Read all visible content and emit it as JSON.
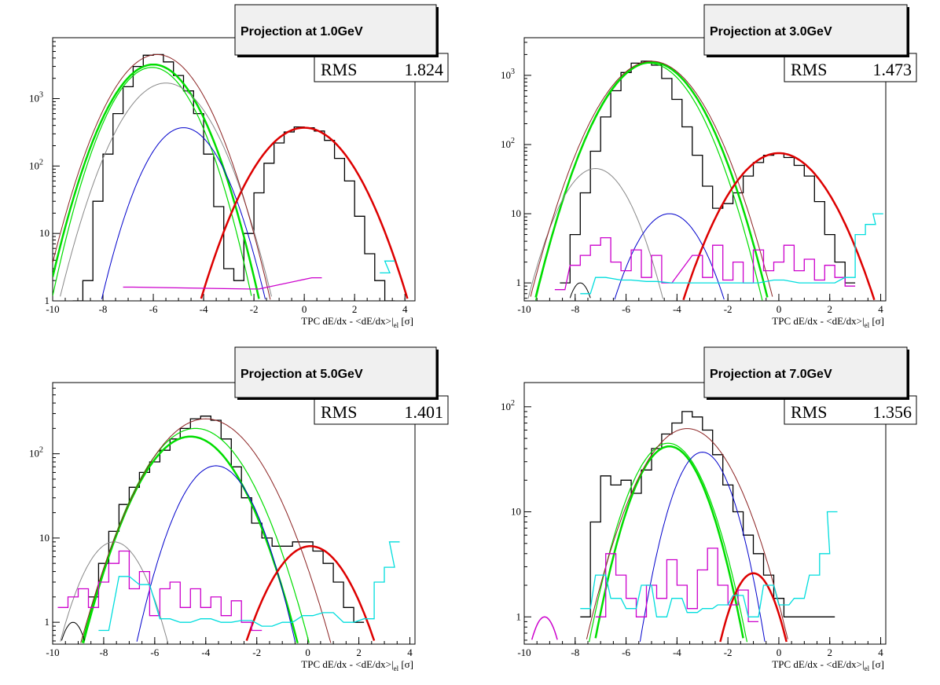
{
  "chart_data": [
    {
      "type": "line",
      "title": "Projection at 1.0GeV",
      "stat_label": "RMS",
      "stat_value": "1.824",
      "xlabel": "TPC dE/dx - <dE/dx>|el [σ]",
      "xlim": [
        -10,
        4.4
      ],
      "ylim_log": [
        1,
        8000
      ],
      "log_y": true,
      "x_ticks": [
        "-10",
        "-8",
        "-6",
        "-4",
        "-2",
        "0",
        "2",
        "4"
      ],
      "y_ticks": [
        {
          "base": "10",
          "exp": "3",
          "value": 1000
        },
        {
          "base": "10",
          "exp": "2",
          "value": 100
        },
        {
          "base": "10",
          "exp": "",
          "value": 10
        },
        {
          "base": "1",
          "exp": "",
          "value": 1
        }
      ],
      "series": [
        {
          "kind": "hist",
          "color": "#000000",
          "x": [
            -9.0,
            -8.6,
            -8.2,
            -7.8,
            -7.4,
            -7.0,
            -6.6,
            -6.2,
            -5.8,
            -5.4,
            -5.0,
            -4.6,
            -4.2,
            -3.8,
            -3.4,
            -3.0,
            -2.6,
            -2.2,
            -1.8,
            -1.4,
            -1.0,
            -0.6,
            -0.2,
            0.2,
            0.6,
            1.0,
            1.4,
            1.8,
            2.2,
            2.6,
            3.0,
            3.4
          ],
          "y": [
            1,
            2,
            30,
            150,
            600,
            1500,
            3000,
            4400,
            4500,
            3500,
            2200,
            1300,
            600,
            150,
            25,
            3,
            2,
            10,
            40,
            110,
            220,
            320,
            380,
            370,
            330,
            240,
            130,
            60,
            18,
            5,
            2,
            1
          ]
        },
        {
          "kind": "gauss",
          "color": "#00dd00",
          "width": 2.5,
          "amp": 3200,
          "mu": -6.0,
          "sigma": 1.05
        },
        {
          "kind": "gauss",
          "color": "#00dd00",
          "width": 1.2,
          "amp": 2900,
          "mu": -6.05,
          "sigma": 1.0
        },
        {
          "kind": "gauss",
          "color": "#888888",
          "width": 1,
          "amp": 1700,
          "mu": -5.5,
          "sigma": 1.1
        },
        {
          "kind": "gauss",
          "color": "#0000cc",
          "width": 1,
          "amp": 370,
          "mu": -4.8,
          "sigma": 0.95
        },
        {
          "kind": "gauss",
          "color": "#dd0000",
          "width": 2.5,
          "amp": 370,
          "mu": 0.0,
          "sigma": 1.2
        },
        {
          "kind": "gauss",
          "color": "#8b2222",
          "width": 1,
          "amp": 4500,
          "mu": -5.85,
          "sigma": 1.1
        },
        {
          "kind": "hist",
          "color": "#cc00cc",
          "x": [
            -7.0,
            -2.0,
            0.5
          ],
          "y": [
            1.6,
            1.5,
            2.2
          ]
        },
        {
          "kind": "hist",
          "color": "#00dddd",
          "x": [
            3.2,
            3.4
          ],
          "y": [
            2.6,
            3.9
          ]
        }
      ]
    },
    {
      "type": "line",
      "title": "Projection at 3.0GeV",
      "stat_label": "RMS",
      "stat_value": "1.473",
      "xlabel": "TPC dE/dx - <dE/dx>|el [σ]",
      "xlim": [
        -10,
        4.2
      ],
      "ylim_log": [
        0.55,
        3500
      ],
      "log_y": true,
      "x_ticks": [
        "-10",
        "-8",
        "-6",
        "-4",
        "-2",
        "0",
        "2",
        "4"
      ],
      "y_ticks": [
        {
          "base": "10",
          "exp": "3",
          "value": 1000
        },
        {
          "base": "10",
          "exp": "2",
          "value": 100
        },
        {
          "base": "10",
          "exp": "",
          "value": 10
        },
        {
          "base": "1",
          "exp": "",
          "value": 1
        }
      ],
      "series": [
        {
          "kind": "hist",
          "color": "#000000",
          "x": [
            -8.4,
            -8.0,
            -7.6,
            -7.2,
            -6.8,
            -6.4,
            -6.0,
            -5.6,
            -5.2,
            -4.8,
            -4.4,
            -4.0,
            -3.6,
            -3.2,
            -2.8,
            -2.4,
            -2.0,
            -1.6,
            -1.2,
            -0.8,
            -0.4,
            0.0,
            0.4,
            0.8,
            1.2,
            1.6,
            2.0,
            2.4,
            2.8
          ],
          "y": [
            1,
            5,
            20,
            80,
            250,
            600,
            1100,
            1500,
            1600,
            1400,
            900,
            450,
            180,
            70,
            25,
            12,
            14,
            20,
            35,
            55,
            70,
            75,
            65,
            50,
            35,
            15,
            5,
            2,
            1
          ]
        },
        {
          "kind": "gauss",
          "color": "#00dd00",
          "width": 2.5,
          "amp": 1550,
          "mu": -5.0,
          "sigma": 1.15
        },
        {
          "kind": "gauss",
          "color": "#00dd00",
          "width": 1.2,
          "amp": 1500,
          "mu": -5.1,
          "sigma": 1.12
        },
        {
          "kind": "gauss",
          "color": "#888888",
          "width": 1,
          "amp": 45,
          "mu": -7.2,
          "sigma": 0.9
        },
        {
          "kind": "gauss",
          "color": "#0000cc",
          "width": 1,
          "amp": 10,
          "mu": -4.3,
          "sigma": 0.9
        },
        {
          "kind": "gauss",
          "color": "#000000",
          "width": 1,
          "amp": 1,
          "mu": -7.8,
          "sigma": 0.4
        },
        {
          "kind": "gauss",
          "color": "#dd0000",
          "width": 2.5,
          "amp": 75,
          "mu": 0.0,
          "sigma": 1.2
        },
        {
          "kind": "gauss",
          "color": "#8b2222",
          "width": 1,
          "amp": 1600,
          "mu": -5.0,
          "sigma": 1.2
        },
        {
          "kind": "hist",
          "color": "#cc00cc",
          "x": [
            -8.6,
            -8.0,
            -7.6,
            -7.2,
            -6.8,
            -6.4,
            -6.0,
            -5.6,
            -5.2,
            -4.8,
            -4.4,
            -3.2,
            -2.8,
            -2.4,
            -2.0,
            -1.6,
            -1.2,
            -0.8,
            -0.4,
            0.0,
            0.4,
            0.8,
            1.2,
            1.6,
            2.0,
            2.4,
            2.8
          ],
          "y": [
            0.8,
            1.8,
            2.5,
            3.5,
            4.5,
            2.0,
            1.5,
            3.0,
            1.2,
            2.5,
            1.0,
            2.5,
            1.2,
            3.5,
            1.1,
            2.0,
            1.0,
            3.0,
            1.5,
            2.0,
            3.5,
            1.5,
            2.2,
            1.1,
            1.8,
            1.2,
            0.9
          ]
        },
        {
          "kind": "hist",
          "color": "#00dddd",
          "x": [
            -7.6,
            -7.0,
            -6.0,
            -5.0,
            -4.0,
            -3.0,
            -2.0,
            -1.0,
            0.0,
            1.0,
            2.0,
            2.8,
            3.2,
            3.6,
            3.9
          ],
          "y": [
            0.7,
            1.2,
            1.1,
            1.05,
            1.0,
            1.0,
            1.0,
            1.0,
            1.1,
            1.0,
            1.0,
            1.2,
            5.0,
            7.0,
            10.0
          ]
        }
      ]
    },
    {
      "type": "line",
      "title": "Projection at 5.0GeV",
      "stat_label": "RMS",
      "stat_value": "1.401",
      "xlabel": "TPC dE/dx - <dE/dx>|el [σ]",
      "xlim": [
        -10,
        4.2
      ],
      "ylim_log": [
        0.55,
        700
      ],
      "log_y": true,
      "x_ticks": [
        "-10",
        "-8",
        "-6",
        "-4",
        "-2",
        "0",
        "2",
        "4"
      ],
      "y_ticks": [
        {
          "base": "10",
          "exp": "2",
          "value": 100
        },
        {
          "base": "10",
          "exp": "",
          "value": 10
        },
        {
          "base": "1",
          "exp": "",
          "value": 1
        }
      ],
      "series": [
        {
          "kind": "hist",
          "color": "#000000",
          "x": [
            -8.4,
            -8.0,
            -7.6,
            -7.2,
            -6.8,
            -6.4,
            -6.0,
            -5.6,
            -5.2,
            -4.8,
            -4.4,
            -4.0,
            -3.6,
            -3.2,
            -2.8,
            -2.4,
            -2.0,
            -1.6,
            -1.2,
            -0.8,
            -0.4,
            0.0,
            0.4,
            0.8,
            1.2,
            1.6,
            2.0
          ],
          "y": [
            2,
            5,
            12,
            25,
            40,
            60,
            80,
            110,
            150,
            200,
            260,
            280,
            250,
            150,
            70,
            30,
            15,
            10,
            8,
            8,
            9,
            9,
            7,
            5,
            3,
            1.5,
            1
          ]
        },
        {
          "kind": "gauss",
          "color": "#00dd00",
          "width": 2.5,
          "amp": 160,
          "mu": -4.6,
          "sigma": 1.25
        },
        {
          "kind": "gauss",
          "color": "#00dd00",
          "width": 1.2,
          "amp": 200,
          "mu": -4.4,
          "sigma": 1.3
        },
        {
          "kind": "gauss",
          "color": "#888888",
          "width": 1,
          "amp": 9,
          "mu": -7.6,
          "sigma": 0.9
        },
        {
          "kind": "gauss",
          "color": "#0000cc",
          "width": 1,
          "amp": 72,
          "mu": -3.6,
          "sigma": 1.0
        },
        {
          "kind": "gauss",
          "color": "#000000",
          "width": 1,
          "amp": 1,
          "mu": -9.2,
          "sigma": 0.45
        },
        {
          "kind": "gauss",
          "color": "#dd0000",
          "width": 2.5,
          "amp": 8,
          "mu": 0.1,
          "sigma": 1.1
        },
        {
          "kind": "gauss",
          "color": "#8b2222",
          "width": 1,
          "amp": 260,
          "mu": -4.0,
          "sigma": 1.4
        },
        {
          "kind": "hist",
          "color": "#cc00cc",
          "x": [
            -9.6,
            -9.2,
            -8.8,
            -8.4,
            -8.0,
            -7.6,
            -7.2,
            -6.8,
            -6.4,
            -6.0,
            -5.6,
            -5.2,
            -4.8,
            -4.4,
            -4.0,
            -3.6,
            -3.2,
            -2.8,
            -2.4,
            -2.0
          ],
          "y": [
            1.5,
            2.0,
            2.5,
            1.5,
            3.0,
            5.0,
            7.0,
            2.5,
            4.0,
            1.2,
            2.5,
            3.0,
            1.5,
            2.5,
            1.5,
            2.0,
            1.2,
            1.8,
            1.0,
            0.8
          ]
        },
        {
          "kind": "hist",
          "color": "#00dddd",
          "x": [
            -8.0,
            -7.2,
            -6.4,
            -5.6,
            -4.8,
            -4.0,
            -3.2,
            -2.4,
            -1.6,
            -0.8,
            0.0,
            0.8,
            1.6,
            2.4,
            2.8,
            3.2,
            3.4
          ],
          "y": [
            0.8,
            3.5,
            2.8,
            1.1,
            1.0,
            1.1,
            1.0,
            1.05,
            0.9,
            1.0,
            1.2,
            1.3,
            1.0,
            1.1,
            3.0,
            4.5,
            9.0
          ]
        }
      ]
    },
    {
      "type": "line",
      "title": "Projection at 7.0GeV",
      "stat_label": "RMS",
      "stat_value": "1.356",
      "xlabel": "TPC dE/dx - <dE/dx>|el [σ]",
      "xlim": [
        -10,
        4.2
      ],
      "ylim_log": [
        0.55,
        170
      ],
      "log_y": true,
      "x_ticks": [
        "-10",
        "-8",
        "-6",
        "-4",
        "-2",
        "0",
        "2",
        "4"
      ],
      "y_ticks": [
        {
          "base": "10",
          "exp": "2",
          "value": 100
        },
        {
          "base": "10",
          "exp": "",
          "value": 10
        },
        {
          "base": "1",
          "exp": "",
          "value": 1
        }
      ],
      "series": [
        {
          "kind": "hist",
          "color": "#000000",
          "x": [
            -7.6,
            -7.2,
            -6.8,
            -6.4,
            -6.0,
            -5.6,
            -5.2,
            -4.8,
            -4.4,
            -4.0,
            -3.6,
            -3.2,
            -2.8,
            -2.4,
            -2.0,
            -1.6,
            -1.2,
            -0.8,
            -0.4,
            0.0,
            0.4,
            0.8,
            1.2,
            1.6,
            2.0
          ],
          "y": [
            1,
            8,
            22,
            18,
            20,
            15,
            25,
            40,
            55,
            70,
            90,
            80,
            60,
            35,
            18,
            10,
            6,
            4,
            2.5,
            1.5,
            1,
            1,
            1,
            1,
            1
          ]
        },
        {
          "kind": "gauss",
          "color": "#00dd00",
          "width": 2.5,
          "amp": 42,
          "mu": -4.3,
          "sigma": 1.0
        },
        {
          "kind": "gauss",
          "color": "#00dd00",
          "width": 1.2,
          "amp": 45,
          "mu": -4.35,
          "sigma": 1.05
        },
        {
          "kind": "gauss",
          "color": "#0000cc",
          "width": 1,
          "amp": 37,
          "mu": -3.0,
          "sigma": 0.85
        },
        {
          "kind": "gauss",
          "color": "#8b2222",
          "width": 1,
          "amp": 62,
          "mu": -3.6,
          "sigma": 1.3
        },
        {
          "kind": "gauss",
          "color": "#cc00cc",
          "width": 1.5,
          "amp": 1,
          "mu": -9.2,
          "sigma": 0.5
        },
        {
          "kind": "gauss",
          "color": "#dd0000",
          "width": 2.5,
          "amp": 2.6,
          "mu": -1.0,
          "sigma": 0.75
        },
        {
          "kind": "hist",
          "color": "#cc00cc",
          "x": [
            -7.0,
            -6.6,
            -6.2,
            -5.8,
            -5.4,
            -5.0,
            -4.6,
            -4.2,
            -3.8,
            -3.4,
            -3.0,
            -2.6,
            -2.2,
            -1.8,
            -1.4,
            -1.0
          ],
          "y": [
            1.0,
            4.0,
            2.5,
            1.5,
            1.0,
            2.0,
            1.5,
            3.5,
            2.0,
            1.2,
            2.8,
            4.5,
            2.0,
            1.3,
            1.8,
            0.9
          ]
        },
        {
          "kind": "hist",
          "color": "#00dddd",
          "x": [
            -7.6,
            -7.0,
            -6.4,
            -5.8,
            -5.2,
            -4.6,
            -4.0,
            -3.4,
            -2.8,
            -2.2,
            -1.6,
            -1.0,
            -0.4,
            0.2,
            0.8,
            1.4,
            1.8,
            2.1
          ],
          "y": [
            1.2,
            2.5,
            1.5,
            1.2,
            2.0,
            1.0,
            1.5,
            1.1,
            1.2,
            1.3,
            1.6,
            1.0,
            2.0,
            1.3,
            1.5,
            2.5,
            4.0,
            10.0
          ]
        }
      ]
    }
  ]
}
